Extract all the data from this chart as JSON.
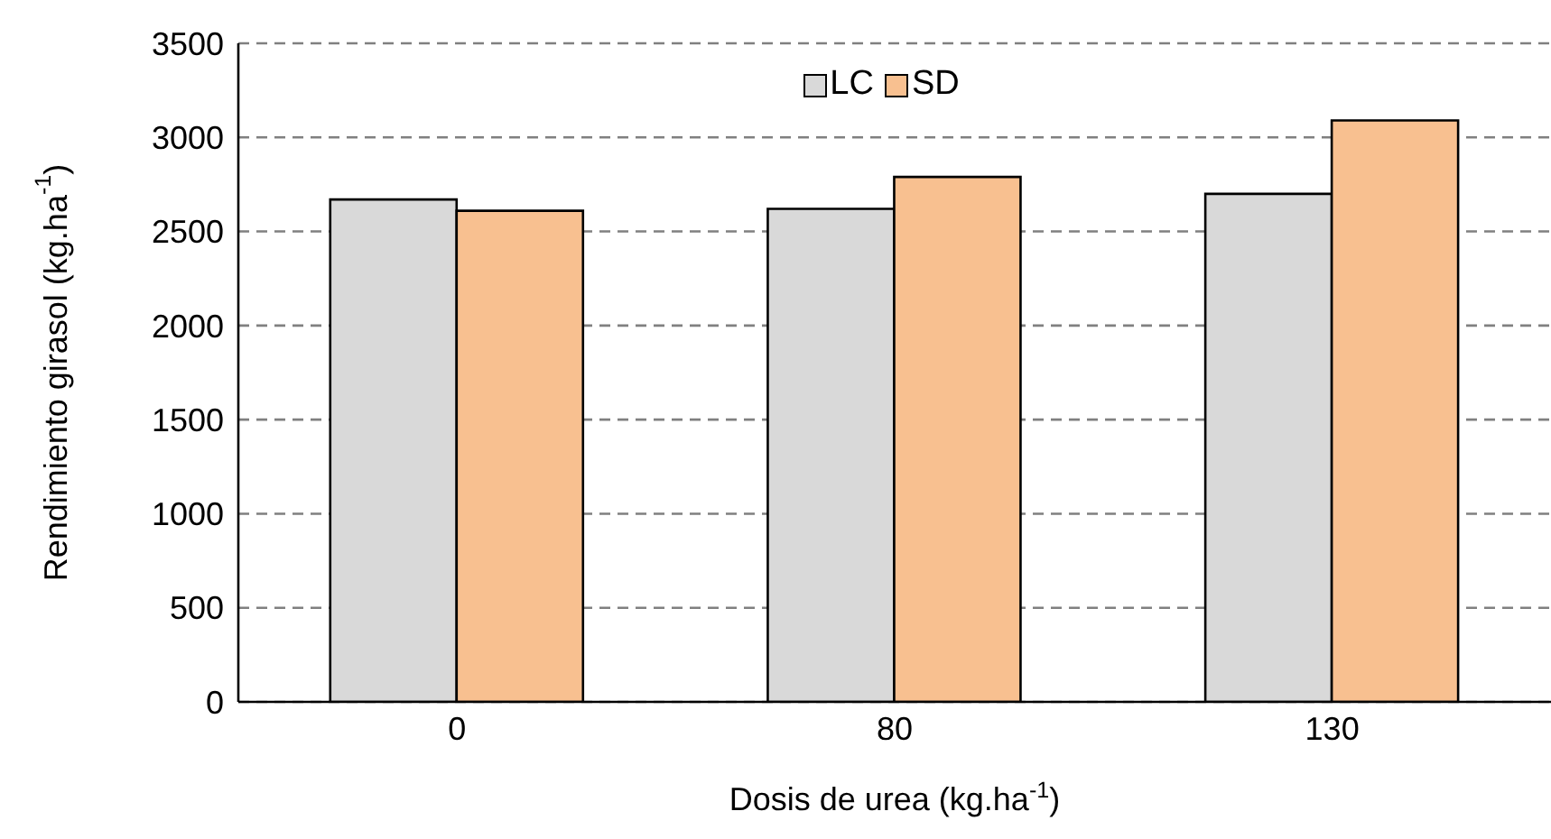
{
  "chart_data": {
    "type": "bar",
    "xlabel": "Dosis de urea (kg.ha$^{-1}$)",
    "ylabel": "Rendimiento girasol (kg.ha$^{-1}$)",
    "categories": [
      "0",
      "80",
      "130"
    ],
    "series": [
      {
        "name": "LC",
        "color": "#d9d9d9",
        "values": [
          2670,
          2620,
          2700
        ]
      },
      {
        "name": "SD",
        "color": "#f8c090",
        "values": [
          2610,
          2790,
          3090
        ]
      }
    ],
    "ylim": [
      0,
      3500
    ],
    "yticks": [
      0,
      500,
      1000,
      1500,
      2000,
      2500,
      3000,
      3500
    ],
    "grid": "y",
    "legend": "top"
  }
}
